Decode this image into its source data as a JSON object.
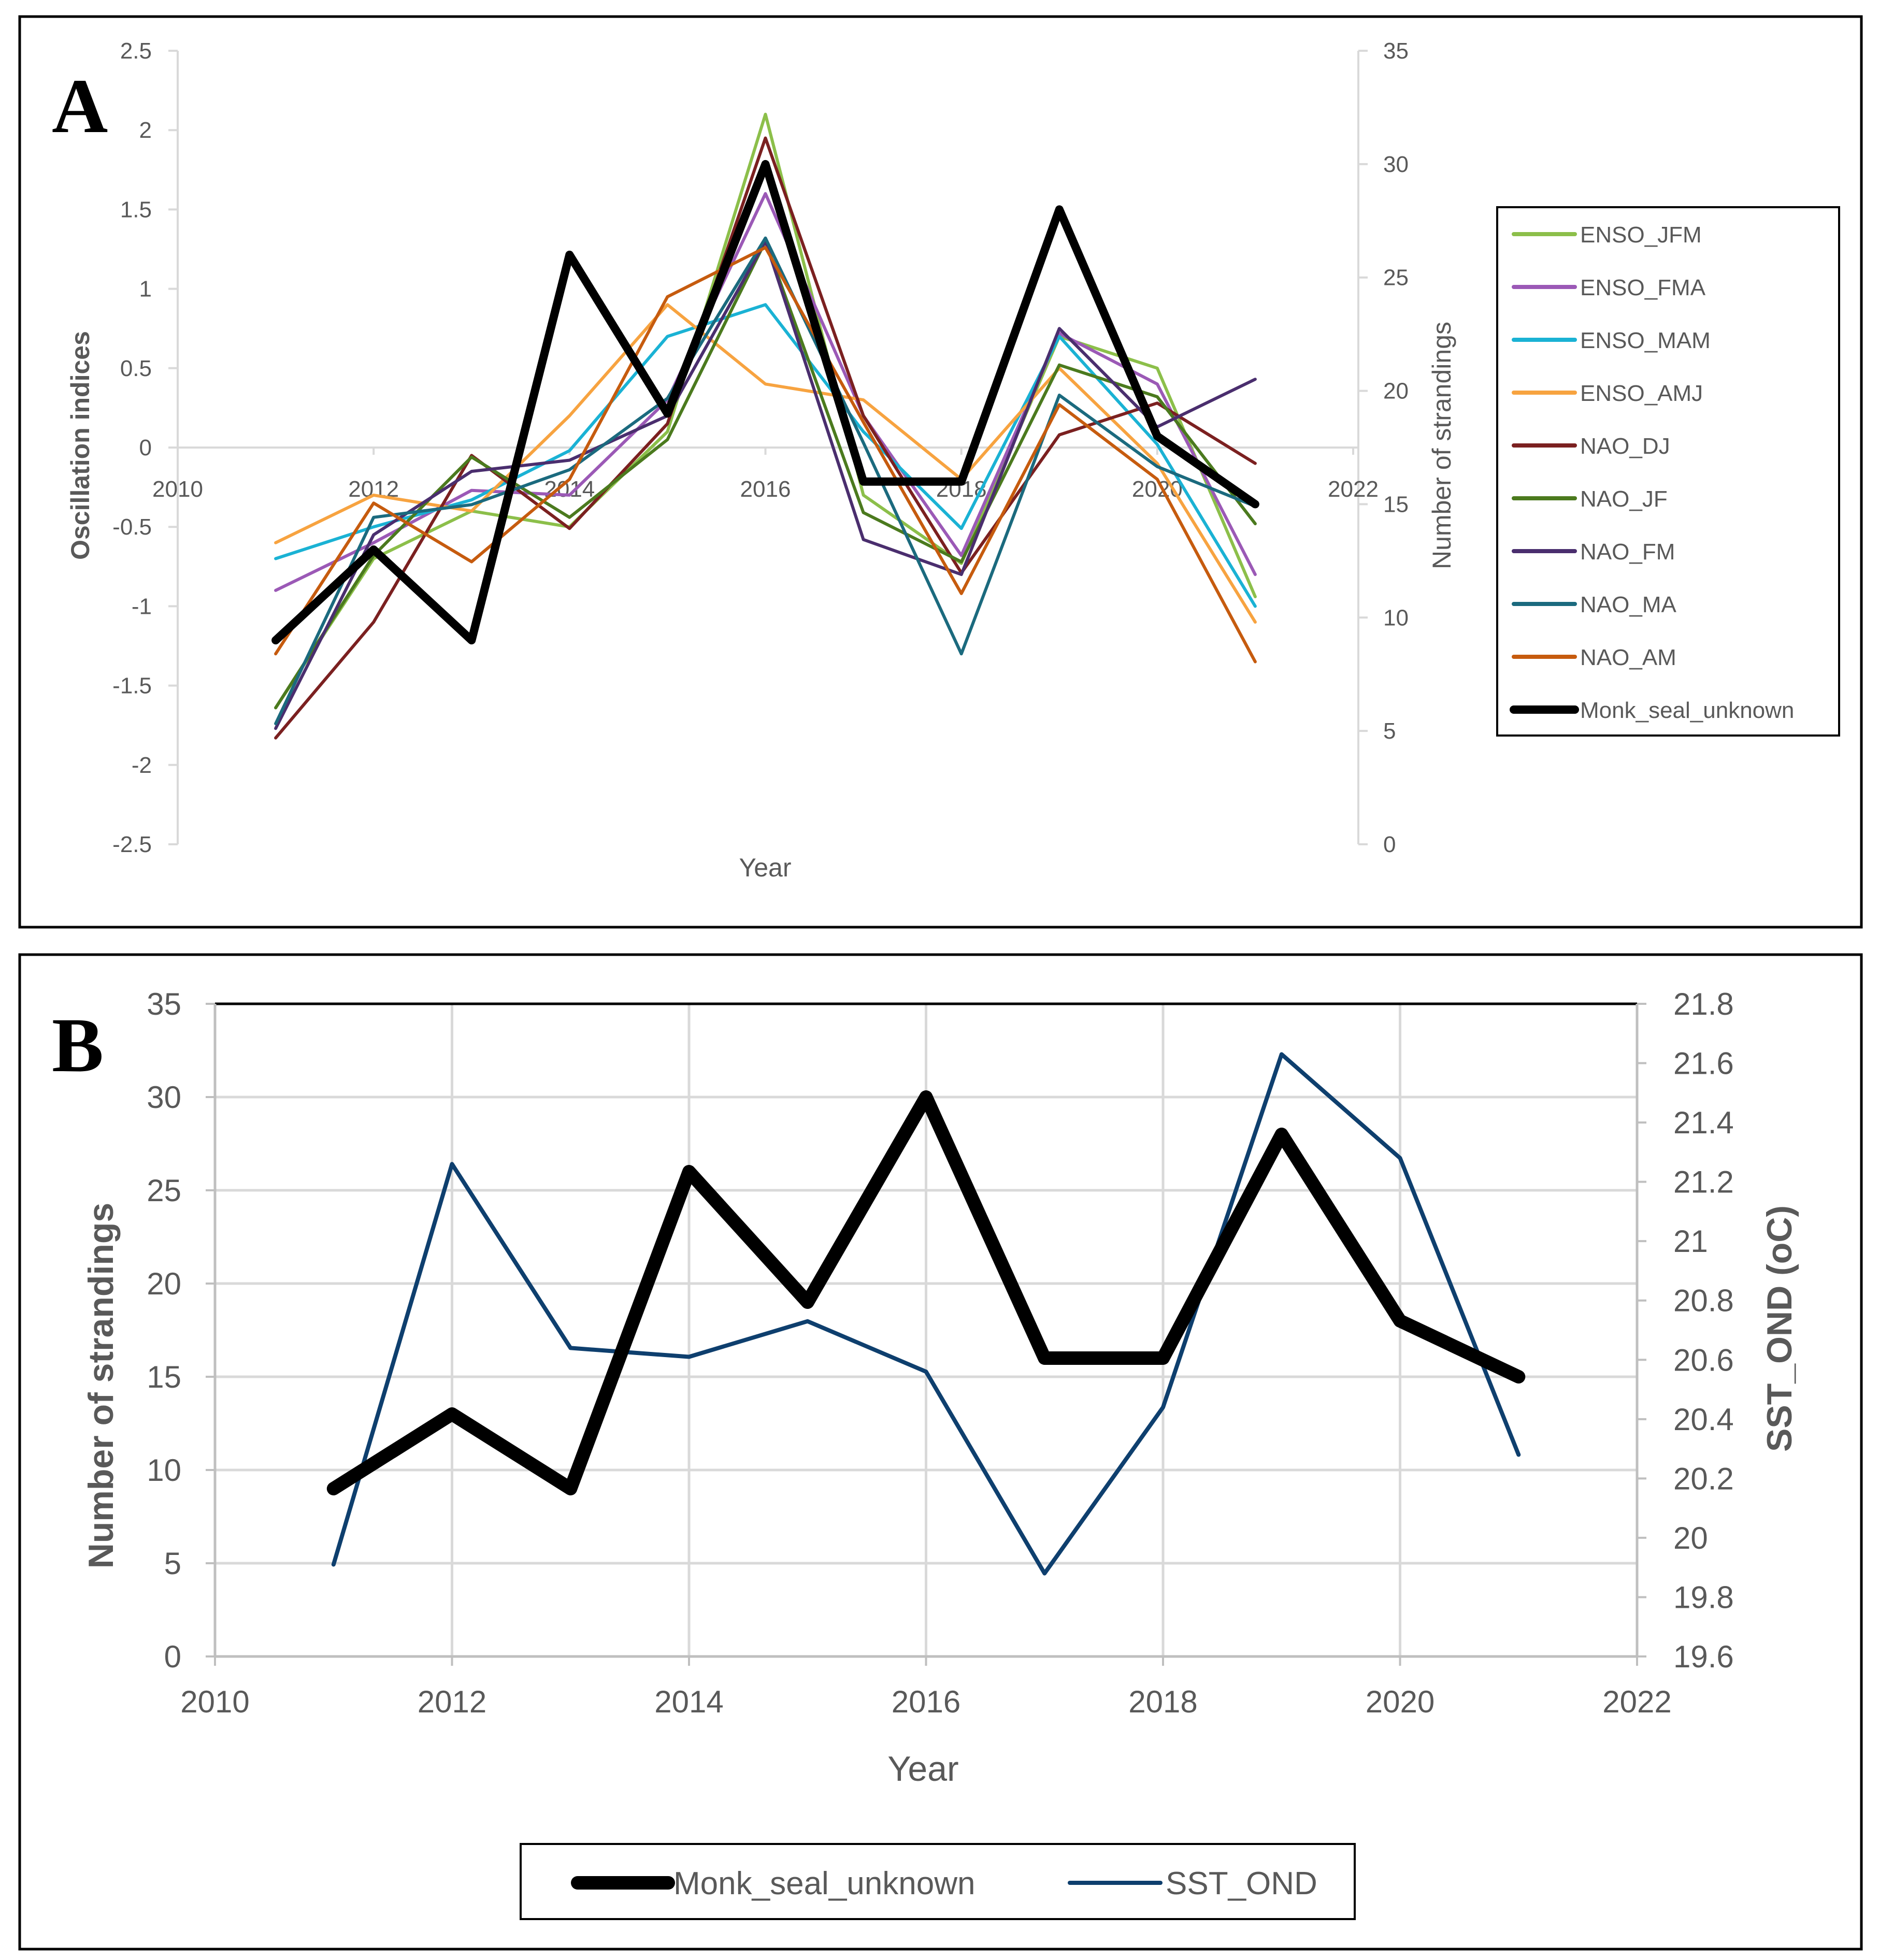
{
  "chart_data": [
    {
      "type": "line",
      "panel_label": "A",
      "title": "",
      "xlabel": "Year",
      "ylabel": "Oscillation indices",
      "y2label": "Number of strandings",
      "xlim": [
        2010,
        2022
      ],
      "ylim": [
        -2.5,
        2.5
      ],
      "y2lim": [
        0,
        35
      ],
      "x_ticks": [
        "2010",
        "2012",
        "2014",
        "2016",
        "2018",
        "2020",
        "2022"
      ],
      "y_ticks": [
        "2.5",
        "2",
        "1.5",
        "1",
        "0.5",
        "0",
        "-0.5",
        "-1",
        "-1.5",
        "-2",
        "-2.5"
      ],
      "y2_ticks": [
        "35",
        "30",
        "25",
        "20",
        "15",
        "10",
        "5",
        "0"
      ],
      "grid": false,
      "legend_position": "right",
      "x": [
        2011,
        2012,
        2013,
        2014,
        2015,
        2016,
        2017,
        2018,
        2019,
        2020,
        2021
      ],
      "series": [
        {
          "name": "ENSO_JFM",
          "color": "#8cbf4a",
          "axis": "left",
          "values": [
            -1.64,
            -0.7,
            -0.4,
            -0.5,
            0.1,
            2.1,
            -0.3,
            -0.73,
            0.7,
            0.5,
            -0.94
          ]
        },
        {
          "name": "ENSO_FMA",
          "color": "#9b59b6",
          "axis": "left",
          "values": [
            -0.9,
            -0.6,
            -0.27,
            -0.3,
            0.3,
            1.6,
            0.2,
            -0.68,
            0.72,
            0.4,
            -0.8
          ]
        },
        {
          "name": "ENSO_MAM",
          "color": "#1ab2d4",
          "axis": "left",
          "values": [
            -0.7,
            -0.5,
            -0.33,
            -0.02,
            0.7,
            0.9,
            0.1,
            -0.51,
            0.7,
            0.02,
            -1.0
          ]
        },
        {
          "name": "ENSO_AMJ",
          "color": "#f7a340",
          "axis": "left",
          "values": [
            -0.6,
            -0.3,
            -0.4,
            0.2,
            0.9,
            0.4,
            0.3,
            -0.2,
            0.5,
            -0.1,
            -1.1
          ]
        },
        {
          "name": "NAO_DJ",
          "color": "#7b2020",
          "axis": "left",
          "values": [
            -1.83,
            -1.1,
            -0.05,
            -0.51,
            0.15,
            1.95,
            0.2,
            -0.79,
            0.08,
            0.28,
            -0.1
          ]
        },
        {
          "name": "NAO_JF",
          "color": "#4b7a1e",
          "axis": "left",
          "values": [
            -1.64,
            -0.68,
            -0.06,
            -0.44,
            0.05,
            1.3,
            -0.41,
            -0.72,
            0.52,
            0.32,
            -0.48
          ]
        },
        {
          "name": "NAO_FM",
          "color": "#4a2e6e",
          "axis": "left",
          "values": [
            -1.77,
            -0.55,
            -0.15,
            -0.08,
            0.2,
            1.3,
            -0.58,
            -0.8,
            0.75,
            0.13,
            0.43
          ]
        },
        {
          "name": "NAO_MA",
          "color": "#1b6a7e",
          "axis": "left",
          "values": [
            -1.74,
            -0.44,
            -0.36,
            -0.14,
            0.31,
            1.32,
            0.03,
            -1.3,
            0.33,
            -0.12,
            -0.37
          ]
        },
        {
          "name": "NAO_AM",
          "color": "#c65b0e",
          "axis": "left",
          "values": [
            -1.3,
            -0.35,
            -0.72,
            -0.2,
            0.95,
            1.26,
            0.16,
            -0.92,
            0.27,
            -0.2,
            -1.35
          ]
        },
        {
          "name": "Monk_seal_unknown",
          "color": "#000000",
          "axis": "right",
          "values": [
            9,
            13,
            9,
            26,
            19,
            30,
            16,
            16,
            28,
            18,
            15
          ]
        }
      ]
    },
    {
      "type": "line",
      "panel_label": "B",
      "title": "",
      "xlabel": "Year",
      "ylabel": "Number of strandings",
      "y2label": "SST_OND (oC)",
      "xlim": [
        2010,
        2022
      ],
      "ylim": [
        0,
        35
      ],
      "y2lim": [
        19.6,
        21.8
      ],
      "x_ticks": [
        "2010",
        "2012",
        "2014",
        "2016",
        "2018",
        "2020",
        "2022"
      ],
      "y_ticks": [
        "35",
        "30",
        "25",
        "20",
        "15",
        "10",
        "5",
        "0"
      ],
      "y2_ticks": [
        "21.8",
        "21.6",
        "21.4",
        "21.2",
        "21",
        "20.8",
        "20.6",
        "20.4",
        "20.2",
        "20",
        "19.8",
        "19.6"
      ],
      "grid": true,
      "legend_position": "bottom",
      "x": [
        2011,
        2012,
        2013,
        2014,
        2015,
        2016,
        2017,
        2018,
        2019,
        2020,
        2021
      ],
      "series": [
        {
          "name": "Monk_seal_unknown",
          "color": "#000000",
          "axis": "left",
          "values": [
            9,
            13,
            9,
            26,
            19,
            30,
            16,
            16,
            28,
            18,
            15
          ]
        },
        {
          "name": "SST_OND",
          "color": "#0e3f6e",
          "axis": "right",
          "values": [
            19.91,
            21.26,
            20.64,
            20.61,
            20.73,
            20.56,
            19.88,
            20.44,
            21.63,
            21.28,
            20.28
          ]
        }
      ]
    }
  ]
}
